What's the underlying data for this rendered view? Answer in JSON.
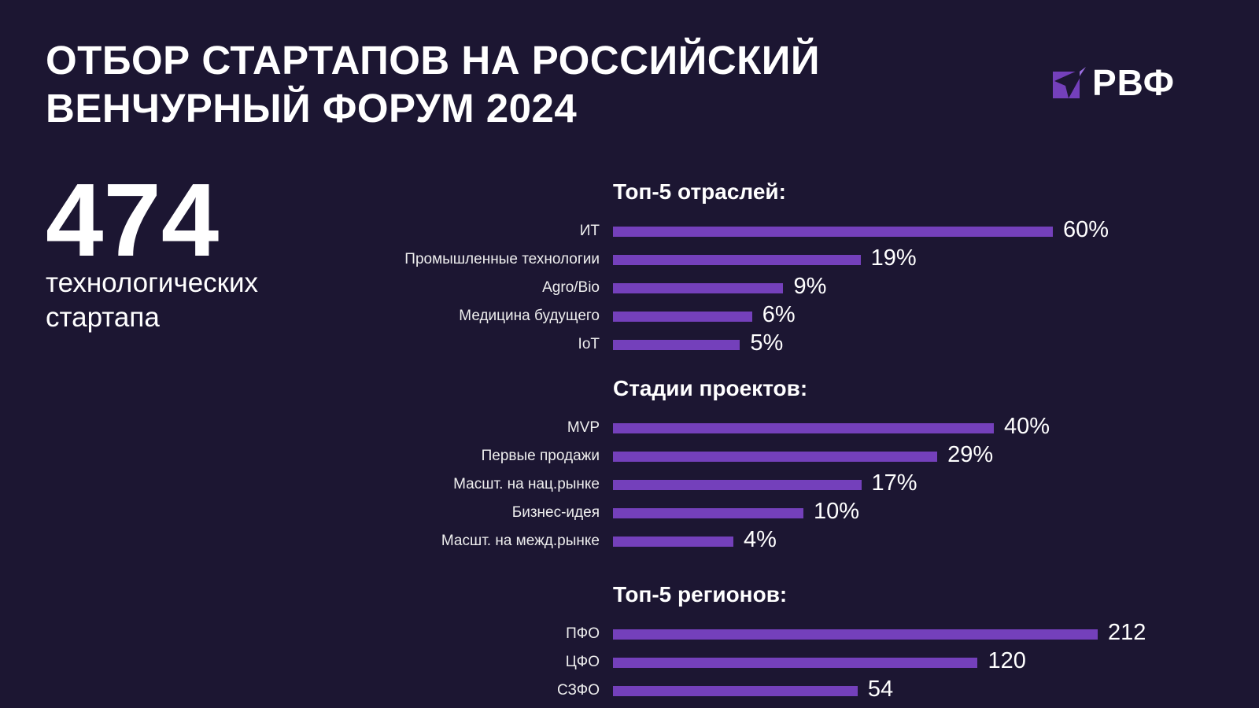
{
  "title_line1": "ОТБОР СТАРТАПОВ НА РОССИЙСКИЙ",
  "title_line2": "ВЕНЧУРНЫЙ ФОРУМ 2024",
  "logo_text": "РВФ",
  "headline_number": "474",
  "headline_text_line1": "технологических",
  "headline_text_line2": "стартапа",
  "colors": {
    "background": "#1c1632",
    "bar": "#7440bb",
    "text": "#ffffff"
  },
  "chart_data": [
    {
      "type": "bar",
      "orientation": "horizontal",
      "title": "Топ-5 отраслей:",
      "unit": "%",
      "categories": [
        "ИТ",
        "Промышленные технологии",
        "Agro/Bio",
        "Медицина будущего",
        "IoT"
      ],
      "values": [
        60,
        19,
        9,
        6,
        5
      ],
      "labels": [
        "60%",
        "19%",
        "9%",
        "6%",
        "5%"
      ]
    },
    {
      "type": "bar",
      "orientation": "horizontal",
      "title": "Стадии проектов:",
      "unit": "%",
      "categories": [
        "MVP",
        "Первые продажи",
        "Масшт. на нац.рынке",
        "Бизнес-идея",
        "Масшт. на межд.рынке"
      ],
      "values": [
        40,
        29,
        17,
        10,
        4
      ],
      "labels": [
        "40%",
        "29%",
        "17%",
        "10%",
        "4%"
      ]
    },
    {
      "type": "bar",
      "orientation": "horizontal",
      "title": "Топ-5 регионов:",
      "unit": "",
      "categories": [
        "ПФО",
        "ЦФО",
        "СЗФО"
      ],
      "values": [
        212,
        120,
        54
      ],
      "labels": [
        "212",
        "120",
        "54"
      ]
    }
  ]
}
